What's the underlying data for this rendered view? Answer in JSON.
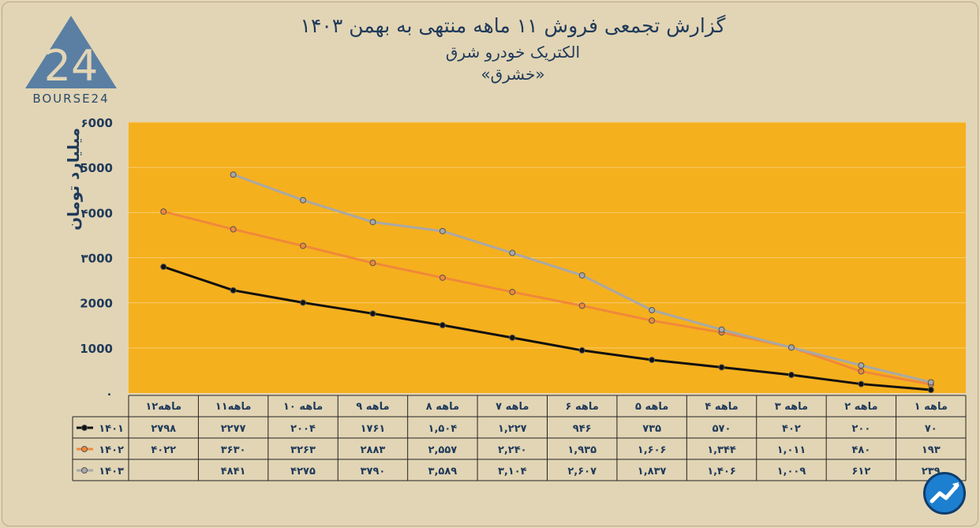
{
  "header": {
    "title": "گزارش تجمعی فروش ۱۱ ماهه منتهی به بهمن ۱۴۰۳",
    "subtitle": "الکتریک خودرو شرق",
    "symbol": "«خشرق»"
  },
  "logo": {
    "text": "BOURSE24",
    "numeral": "24"
  },
  "colors": {
    "plot_bg": "#f5b01e",
    "bg": "#e2d5b5",
    "s1401": "#111111",
    "s1402": "#f0883a",
    "s1403": "#a8a8a8",
    "text": "#1f3a5a"
  },
  "chart_data": {
    "type": "line",
    "ylabel": "میلیارد تومان",
    "ylim": [
      0,
      6000
    ],
    "yticks": [
      "۰",
      "1000",
      "2000",
      "۳000",
      "۴000",
      "5000",
      "۶000"
    ],
    "categories": [
      "۱ ماهه",
      "۲ ماهه",
      "۳ ماهه",
      "۴ ماهه",
      "۵ ماهه",
      "۶ ماهه",
      "۷ ماهه",
      "۸ ماهه",
      "۹ ماهه",
      "۱۰ ماهه",
      "۱۱ماهه",
      "۱۲ماهه"
    ],
    "series": [
      {
        "name": "۱۴۰۱",
        "color": "#111111",
        "values": [
          70,
          200,
          402,
          570,
          735,
          946,
          1227,
          1504,
          1761,
          2004,
          2277,
          2798
        ],
        "labels": [
          "۷۰",
          "۲۰۰",
          "۴۰۲",
          "۵۷۰",
          "۷۳۵",
          "۹۴۶",
          "۱,۲۲۷",
          "۱,۵۰۴",
          "۱۷۶۱",
          "۲۰۰۴",
          "۲۲۷۷",
          "۲۷۹۸"
        ]
      },
      {
        "name": "۱۴۰۲",
        "color": "#f0883a",
        "values": [
          193,
          480,
          1011,
          1344,
          1606,
          1935,
          2240,
          2557,
          2883,
          3263,
          3630,
          4022
        ],
        "labels": [
          "۱۹۳",
          "۴۸۰",
          "۱,۰۱۱",
          "۱,۳۴۴",
          "۱,۶۰۶",
          "۱,۹۳۵",
          "۲,۲۴۰",
          "۲,۵۵۷",
          "۲۸۸۳",
          "۳۲۶۳",
          "۳۶۳۰",
          "۴۰۲۲"
        ]
      },
      {
        "name": "۱۴۰۳",
        "color": "#a8a8a8",
        "values": [
          239,
          612,
          1009,
          1406,
          1837,
          2607,
          3104,
          3589,
          3790,
          4275,
          4841,
          null
        ],
        "labels": [
          "۲۳۹",
          "۶۱۲",
          "۱,۰۰۹",
          "۱,۴۰۶",
          "۱,۸۳۷",
          "۲,۶۰۷",
          "۳,۱۰۴",
          "۳,۵۸۹",
          "۳۷۹۰",
          "۴۲۷۵",
          "۴۸۴۱",
          ""
        ]
      }
    ],
    "grid": true,
    "legend": "table-left"
  }
}
